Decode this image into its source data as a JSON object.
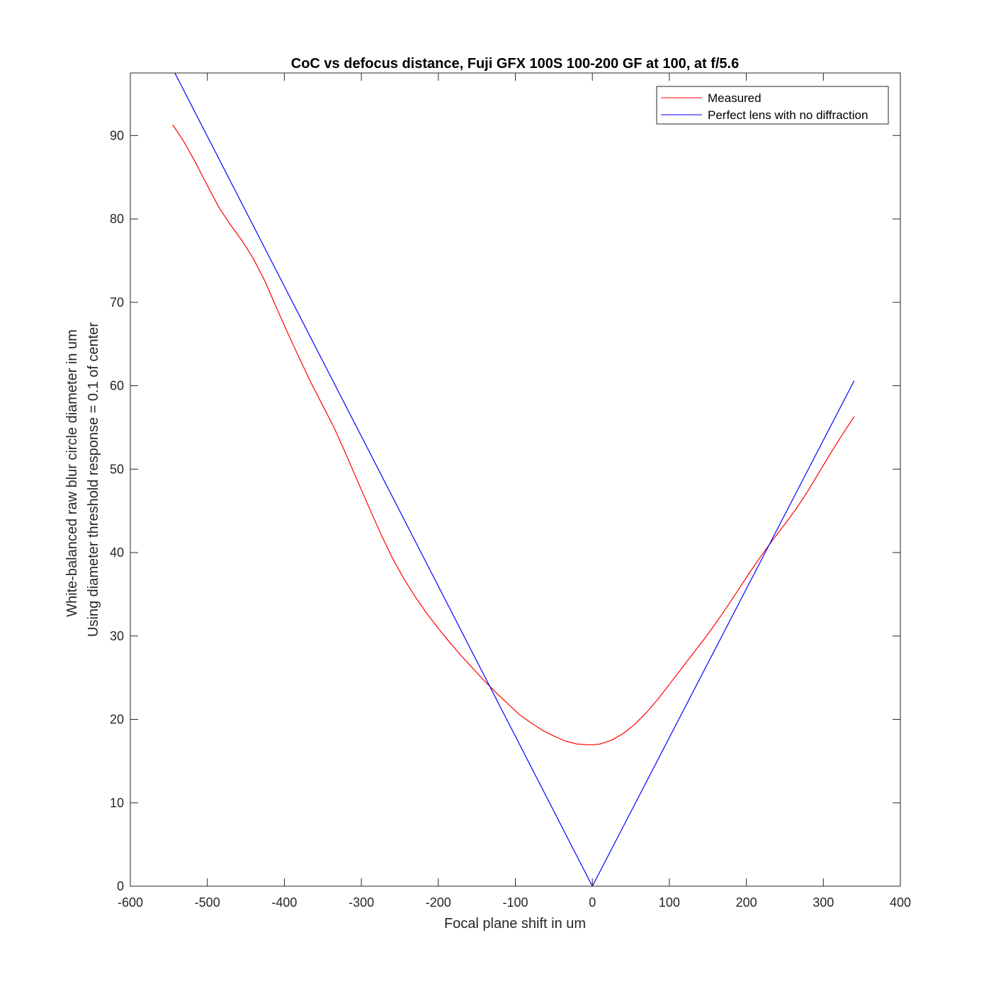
{
  "chart_data": {
    "type": "line",
    "title": "CoC vs defocus distance, Fuji GFX 100S 100-200 GF at 100, at f/5.6",
    "xlabel": "Focal plane shift in um",
    "ylabel": [
      "White-balanced raw blur circle diameter in um",
      "Using diameter threshold response = 0.1 of center"
    ],
    "xlim": [
      -600,
      400
    ],
    "ylim": [
      0,
      97.5
    ],
    "xticks": [
      -600,
      -500,
      -400,
      -300,
      -200,
      -100,
      0,
      100,
      200,
      300,
      400
    ],
    "xtick_labels": [
      "-600",
      "-500",
      "-400",
      "-300",
      "-200",
      "-100",
      "0",
      "100",
      "200",
      "300",
      "400"
    ],
    "yticks": [
      0,
      10,
      20,
      30,
      40,
      50,
      60,
      70,
      80,
      90
    ],
    "ytick_labels": [
      "0",
      "10",
      "20",
      "30",
      "40",
      "50",
      "60",
      "70",
      "80",
      "90"
    ],
    "grid": false,
    "legend_position": "top-right",
    "series": [
      {
        "name": "Measured",
        "color": "#ff0000",
        "x": [
          -545,
          -530,
          -515,
          -500,
          -485,
          -470,
          -455,
          -440,
          -425,
          -410,
          -395,
          -380,
          -365,
          -350,
          -335,
          -320,
          -305,
          -290,
          -275,
          -260,
          -245,
          -230,
          -215,
          -200,
          -185,
          -170,
          -155,
          -140,
          -125,
          -110,
          -95,
          -80,
          -65,
          -50,
          -35,
          -20,
          -5,
          0,
          10,
          25,
          40,
          55,
          70,
          85,
          100,
          115,
          130,
          145,
          160,
          175,
          190,
          205,
          220,
          235,
          250,
          265,
          280,
          295,
          310,
          325,
          340
        ],
        "y": [
          91.3,
          89.2,
          86.7,
          84.0,
          81.4,
          79.3,
          77.4,
          75.2,
          72.5,
          69.3,
          66.2,
          63.2,
          60.3,
          57.6,
          54.9,
          51.8,
          48.6,
          45.4,
          42.3,
          39.4,
          36.9,
          34.7,
          32.7,
          30.9,
          29.2,
          27.6,
          26.1,
          24.6,
          23.2,
          21.9,
          20.6,
          19.6,
          18.7,
          18.0,
          17.4,
          17.05,
          16.95,
          16.95,
          17.05,
          17.5,
          18.3,
          19.4,
          20.8,
          22.4,
          24.2,
          26.0,
          27.8,
          29.6,
          31.5,
          33.5,
          35.6,
          37.7,
          39.7,
          41.6,
          43.4,
          45.3,
          47.4,
          49.7,
          52.0,
          54.2,
          56.3
        ]
      },
      {
        "name": "Perfect lens with no diffraction",
        "color": "#0000ff",
        "x": [
          -545,
          0,
          340
        ],
        "y": [
          98.0,
          0,
          60.6
        ]
      }
    ]
  }
}
